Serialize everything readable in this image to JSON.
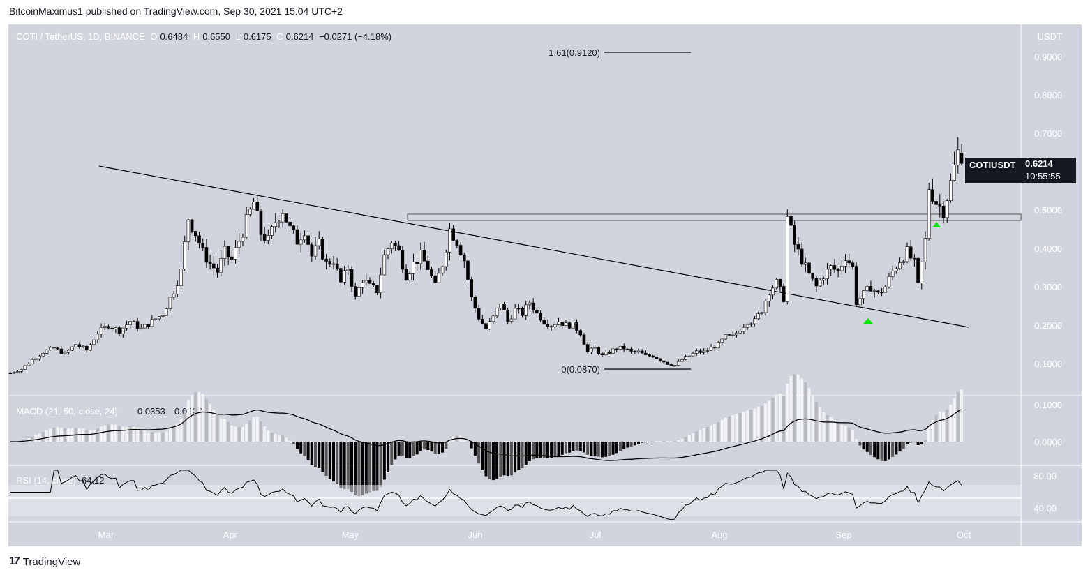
{
  "header": {
    "publisher": "BitcoinMaximus1 published on TradingView.com, Sep 30, 2021 15:04 UTC+2"
  },
  "symbol": {
    "name": "COTI / TetherUS, 1D, BINANCE",
    "o_label": "O",
    "o": "0.6484",
    "h_label": "H",
    "h": "0.6550",
    "l_label": "L",
    "l": "0.6175",
    "c_label": "C",
    "c": "0.6214",
    "change": "−0.0271 (−4.18%)"
  },
  "price_axis": {
    "currency": "USDT",
    "ticks": [
      "0.9000",
      "0.8000",
      "0.7000",
      "0.6000",
      "0.5000",
      "0.4000",
      "0.3000",
      "0.2000",
      "0.1000"
    ]
  },
  "time_axis": {
    "ticks": [
      "Mar",
      "Apr",
      "May",
      "Jun",
      "Jul",
      "Aug",
      "Sep",
      "Oct"
    ]
  },
  "last_price": {
    "ticker": "COTIUSDT",
    "price": "0.6214",
    "countdown": "10:55:55"
  },
  "annotations": {
    "fib_top": "1.61(0.9120)",
    "fib_bottom": "0(0.0870)"
  },
  "macd": {
    "label": "MACD (21, 50, close, 24)",
    "v1": "0.0353",
    "v2": "0.0927",
    "ticks": [
      "0.1000",
      "0.0000"
    ]
  },
  "rsi": {
    "label": "RSI (14, close)",
    "value": "64.12",
    "ticks": [
      "80.00",
      "40.00"
    ]
  },
  "footer": {
    "brand": "TradingView",
    "logo": "17"
  },
  "colors": {
    "bg": "#d1d4dc",
    "up": "#ffffff",
    "down": "#000000",
    "signal": "#00e600",
    "text": "#ffffff"
  },
  "chart_data": {
    "type": "candlestick",
    "title": "COTI / TetherUS, 1D, BINANCE",
    "ylim": [
      0.05,
      0.97
    ],
    "closes": [
      [
        0,
        0.075
      ],
      [
        3,
        0.085
      ],
      [
        6,
        0.11
      ],
      [
        9,
        0.13
      ],
      [
        12,
        0.14
      ],
      [
        15,
        0.125
      ],
      [
        18,
        0.15
      ],
      [
        21,
        0.135
      ],
      [
        24,
        0.18
      ],
      [
        27,
        0.2
      ],
      [
        30,
        0.185
      ],
      [
        33,
        0.21
      ],
      [
        36,
        0.19
      ],
      [
        39,
        0.21
      ],
      [
        42,
        0.23
      ],
      [
        45,
        0.29
      ],
      [
        47,
        0.34
      ],
      [
        49,
        0.48
      ],
      [
        51,
        0.44
      ],
      [
        53,
        0.39
      ],
      [
        55,
        0.36
      ],
      [
        57,
        0.34
      ],
      [
        59,
        0.39
      ],
      [
        61,
        0.37
      ],
      [
        63,
        0.42
      ],
      [
        65,
        0.47
      ],
      [
        67,
        0.52
      ],
      [
        69,
        0.44
      ],
      [
        71,
        0.42
      ],
      [
        73,
        0.47
      ],
      [
        75,
        0.5
      ],
      [
        77,
        0.45
      ],
      [
        79,
        0.42
      ],
      [
        81,
        0.45
      ],
      [
        83,
        0.38
      ],
      [
        85,
        0.41
      ],
      [
        87,
        0.36
      ],
      [
        89,
        0.37
      ],
      [
        91,
        0.31
      ],
      [
        93,
        0.35
      ],
      [
        95,
        0.27
      ],
      [
        97,
        0.32
      ],
      [
        99,
        0.3
      ],
      [
        101,
        0.29
      ],
      [
        103,
        0.38
      ],
      [
        105,
        0.42
      ],
      [
        107,
        0.39
      ],
      [
        109,
        0.33
      ],
      [
        111,
        0.36
      ],
      [
        113,
        0.38
      ],
      [
        115,
        0.35
      ],
      [
        117,
        0.3
      ],
      [
        119,
        0.36
      ],
      [
        121,
        0.45
      ],
      [
        123,
        0.42
      ],
      [
        125,
        0.37
      ],
      [
        127,
        0.27
      ],
      [
        129,
        0.22
      ],
      [
        131,
        0.19
      ],
      [
        133,
        0.22
      ],
      [
        135,
        0.26
      ],
      [
        137,
        0.21
      ],
      [
        139,
        0.24
      ],
      [
        141,
        0.23
      ],
      [
        143,
        0.26
      ],
      [
        145,
        0.23
      ],
      [
        147,
        0.21
      ],
      [
        149,
        0.2
      ],
      [
        151,
        0.21
      ],
      [
        153,
        0.2
      ],
      [
        155,
        0.2
      ],
      [
        157,
        0.18
      ],
      [
        159,
        0.13
      ],
      [
        161,
        0.14
      ],
      [
        163,
        0.12
      ],
      [
        165,
        0.13
      ],
      [
        167,
        0.14
      ],
      [
        169,
        0.14
      ],
      [
        171,
        0.13
      ],
      [
        173,
        0.13
      ],
      [
        175,
        0.12
      ],
      [
        177,
        0.12
      ],
      [
        179,
        0.11
      ],
      [
        181,
        0.1
      ],
      [
        183,
        0.095
      ],
      [
        185,
        0.11
      ],
      [
        187,
        0.12
      ],
      [
        189,
        0.13
      ],
      [
        191,
        0.13
      ],
      [
        193,
        0.14
      ],
      [
        195,
        0.15
      ],
      [
        197,
        0.17
      ],
      [
        199,
        0.17
      ],
      [
        201,
        0.19
      ],
      [
        203,
        0.21
      ],
      [
        205,
        0.21
      ],
      [
        207,
        0.24
      ],
      [
        209,
        0.29
      ],
      [
        211,
        0.31
      ],
      [
        213,
        0.27
      ],
      [
        214,
        0.48
      ],
      [
        216,
        0.41
      ],
      [
        218,
        0.37
      ],
      [
        220,
        0.33
      ],
      [
        222,
        0.3
      ],
      [
        224,
        0.33
      ],
      [
        226,
        0.35
      ],
      [
        228,
        0.34
      ],
      [
        230,
        0.38
      ],
      [
        232,
        0.35
      ],
      [
        233,
        0.26
      ],
      [
        235,
        0.28
      ],
      [
        237,
        0.3
      ],
      [
        239,
        0.28
      ],
      [
        241,
        0.3
      ],
      [
        243,
        0.34
      ],
      [
        245,
        0.37
      ],
      [
        247,
        0.39
      ],
      [
        249,
        0.36
      ],
      [
        250,
        0.3
      ],
      [
        252,
        0.42
      ],
      [
        253,
        0.56
      ],
      [
        255,
        0.52
      ],
      [
        257,
        0.5
      ],
      [
        259,
        0.57
      ],
      [
        261,
        0.65
      ],
      [
        262,
        0.62
      ]
    ]
  }
}
